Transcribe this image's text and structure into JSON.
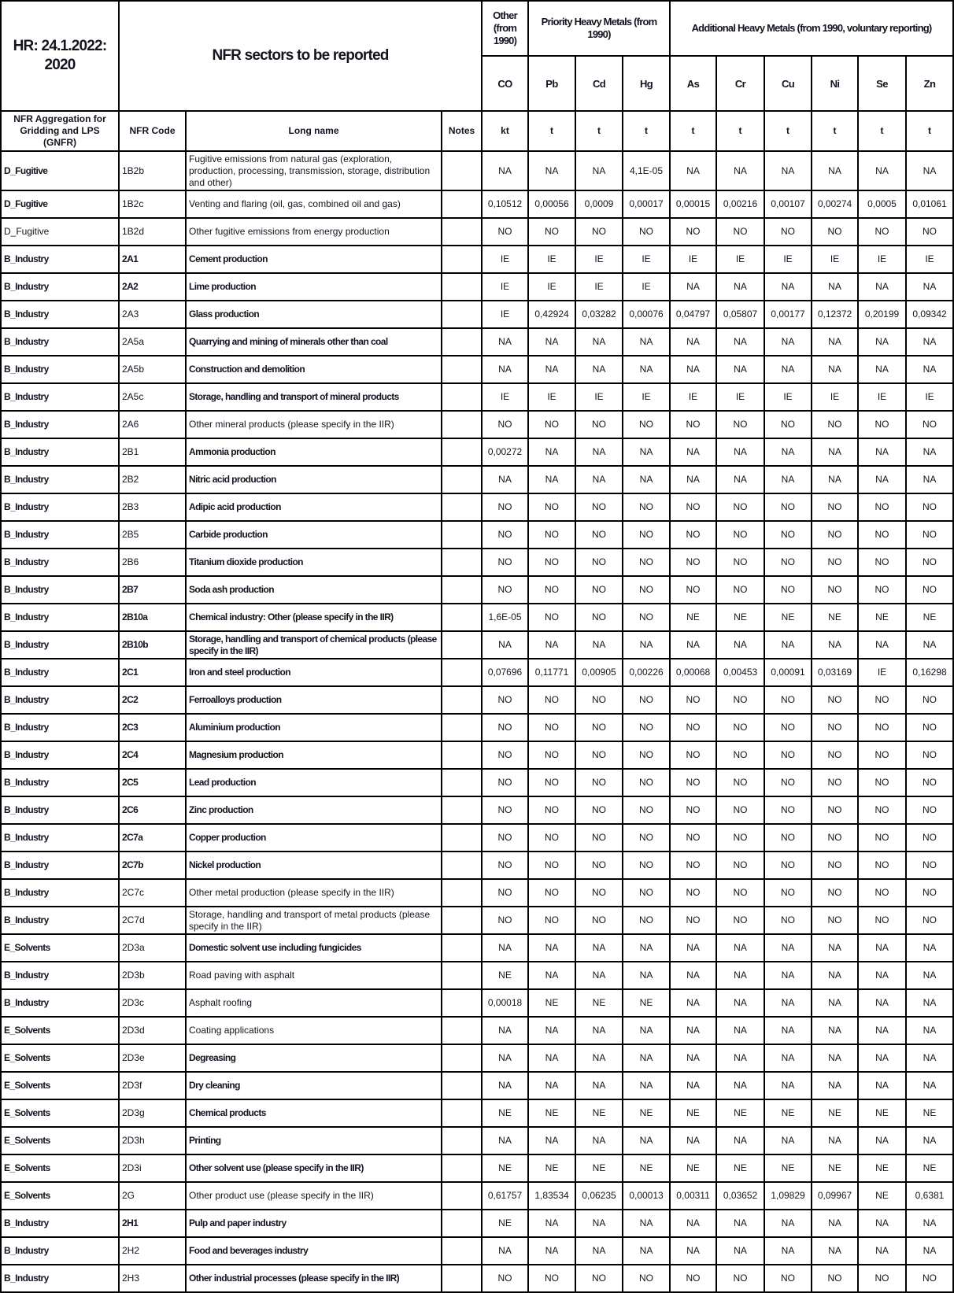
{
  "header": {
    "report_label": "HR: 24.1.2022: 2020",
    "sectors_title": "NFR sectors to be reported",
    "group_other": "Other (from 1990)",
    "group_priority": "Priority Heavy Metals (from 1990)",
    "group_additional": "Additional Heavy Metals (from 1990, voluntary reporting)",
    "pollutants": [
      "CO",
      "Pb",
      "Cd",
      "Hg",
      "As",
      "Cr",
      "Cu",
      "Ni",
      "Se",
      "Zn"
    ],
    "col_gnfr": "NFR Aggregation for Gridding and LPS (GNFR)",
    "col_code": "NFR Code",
    "col_name": "Long name",
    "col_notes": "Notes",
    "units": [
      "kt",
      "t",
      "t",
      "t",
      "t",
      "t",
      "t",
      "t",
      "t",
      "t"
    ]
  },
  "rows": [
    {
      "style": "bnn",
      "gnfr": "D_Fugitive",
      "code": "1B2b",
      "name": "Fugitive emissions from natural gas (exploration, production, processing, transmission, storage, distribution and other)",
      "values": [
        "NA",
        "NA",
        "NA",
        "4,1E-05",
        "NA",
        "NA",
        "NA",
        "NA",
        "NA",
        "NA"
      ]
    },
    {
      "style": "bnn",
      "gnfr": "D_Fugitive",
      "code": "1B2c",
      "name": "Venting and flaring (oil, gas, combined oil and gas)",
      "values": [
        "0,10512",
        "0,00056",
        "0,0009",
        "0,00017",
        "0,00015",
        "0,00216",
        "0,00107",
        "0,00274",
        "0,0005",
        "0,01061"
      ]
    },
    {
      "style": "nnn",
      "gnfr": "D_Fugitive",
      "code": "1B2d",
      "name": "Other fugitive emissions from energy production",
      "values": [
        "NO",
        "NO",
        "NO",
        "NO",
        "NO",
        "NO",
        "NO",
        "NO",
        "NO",
        "NO"
      ]
    },
    {
      "style": "bbb",
      "gnfr": "B_Industry",
      "code": "2A1",
      "name": "Cement production",
      "values": [
        "IE",
        "IE",
        "IE",
        "IE",
        "IE",
        "IE",
        "IE",
        "IE",
        "IE",
        "IE"
      ]
    },
    {
      "style": "bbb",
      "gnfr": "B_Industry",
      "code": "2A2",
      "name": "Lime production",
      "values": [
        "IE",
        "IE",
        "IE",
        "IE",
        "NA",
        "NA",
        "NA",
        "NA",
        "NA",
        "NA"
      ]
    },
    {
      "style": "bnb",
      "gnfr": "B_Industry",
      "code": "2A3",
      "name": "Glass production",
      "values": [
        "IE",
        "0,42924",
        "0,03282",
        "0,00076",
        "0,04797",
        "0,05807",
        "0,00177",
        "0,12372",
        "0,20199",
        "0,09342"
      ]
    },
    {
      "style": "bnb",
      "gnfr": "B_Industry",
      "code": "2A5a",
      "name": "Quarrying and mining of minerals other than coal",
      "values": [
        "NA",
        "NA",
        "NA",
        "NA",
        "NA",
        "NA",
        "NA",
        "NA",
        "NA",
        "NA"
      ]
    },
    {
      "style": "bnb",
      "gnfr": "B_Industry",
      "code": "2A5b",
      "name": "Construction and demolition",
      "values": [
        "NA",
        "NA",
        "NA",
        "NA",
        "NA",
        "NA",
        "NA",
        "NA",
        "NA",
        "NA"
      ]
    },
    {
      "style": "bnb",
      "gnfr": "B_Industry",
      "code": "2A5c",
      "name": "Storage, handling and transport of mineral products",
      "values": [
        "IE",
        "IE",
        "IE",
        "IE",
        "IE",
        "IE",
        "IE",
        "IE",
        "IE",
        "IE"
      ]
    },
    {
      "style": "bnn",
      "gnfr": "B_Industry",
      "code": "2A6",
      "name": "Other mineral products (please specify in the IIR)",
      "values": [
        "NO",
        "NO",
        "NO",
        "NO",
        "NO",
        "NO",
        "NO",
        "NO",
        "NO",
        "NO"
      ]
    },
    {
      "style": "bnb",
      "gnfr": "B_Industry",
      "code": "2B1",
      "name": "Ammonia production",
      "values": [
        "0,00272",
        "NA",
        "NA",
        "NA",
        "NA",
        "NA",
        "NA",
        "NA",
        "NA",
        "NA"
      ]
    },
    {
      "style": "bnb",
      "gnfr": "B_Industry",
      "code": "2B2",
      "name": "Nitric acid production",
      "values": [
        "NA",
        "NA",
        "NA",
        "NA",
        "NA",
        "NA",
        "NA",
        "NA",
        "NA",
        "NA"
      ]
    },
    {
      "style": "bnb",
      "gnfr": "B_Industry",
      "code": "2B3",
      "name": "Adipic acid production",
      "values": [
        "NO",
        "NO",
        "NO",
        "NO",
        "NO",
        "NO",
        "NO",
        "NO",
        "NO",
        "NO"
      ]
    },
    {
      "style": "bnb",
      "gnfr": "B_Industry",
      "code": "2B5",
      "name": "Carbide production",
      "values": [
        "NO",
        "NO",
        "NO",
        "NO",
        "NO",
        "NO",
        "NO",
        "NO",
        "NO",
        "NO"
      ]
    },
    {
      "style": "bnb",
      "gnfr": "B_Industry",
      "code": "2B6",
      "name": "Titanium dioxide production",
      "values": [
        "NO",
        "NO",
        "NO",
        "NO",
        "NO",
        "NO",
        "NO",
        "NO",
        "NO",
        "NO"
      ]
    },
    {
      "style": "bbb",
      "gnfr": "B_Industry",
      "code": "2B7",
      "name": "Soda ash production",
      "values": [
        "NO",
        "NO",
        "NO",
        "NO",
        "NO",
        "NO",
        "NO",
        "NO",
        "NO",
        "NO"
      ]
    },
    {
      "style": "bbb",
      "gnfr": "B_Industry",
      "code": "2B10a",
      "name": "Chemical industry: Other (please specify in the IIR)",
      "values": [
        "1,6E-05",
        "NO",
        "NO",
        "NO",
        "NE",
        "NE",
        "NE",
        "NE",
        "NE",
        "NE"
      ]
    },
    {
      "style": "bbb",
      "gnfr": "B_Industry",
      "code": "2B10b",
      "name": "Storage, handling and transport of chemical products (please specify in the IIR)",
      "values": [
        "NA",
        "NA",
        "NA",
        "NA",
        "NA",
        "NA",
        "NA",
        "NA",
        "NA",
        "NA"
      ]
    },
    {
      "style": "bbb",
      "gnfr": "B_Industry",
      "code": "2C1",
      "name": "Iron and steel production",
      "values": [
        "0,07696",
        "0,11771",
        "0,00905",
        "0,00226",
        "0,00068",
        "0,00453",
        "0,00091",
        "0,03169",
        "IE",
        "0,16298"
      ]
    },
    {
      "style": "bbb",
      "gnfr": "B_Industry",
      "code": "2C2",
      "name": "Ferroalloys production",
      "values": [
        "NO",
        "NO",
        "NO",
        "NO",
        "NO",
        "NO",
        "NO",
        "NO",
        "NO",
        "NO"
      ]
    },
    {
      "style": "bbb",
      "gnfr": "B_Industry",
      "code": "2C3",
      "name": "Aluminium production",
      "values": [
        "NO",
        "NO",
        "NO",
        "NO",
        "NO",
        "NO",
        "NO",
        "NO",
        "NO",
        "NO"
      ]
    },
    {
      "style": "bbb",
      "gnfr": "B_Industry",
      "code": "2C4",
      "name": "Magnesium production",
      "values": [
        "NO",
        "NO",
        "NO",
        "NO",
        "NO",
        "NO",
        "NO",
        "NO",
        "NO",
        "NO"
      ]
    },
    {
      "style": "bbb",
      "gnfr": "B_Industry",
      "code": "2C5",
      "name": "Lead production",
      "values": [
        "NO",
        "NO",
        "NO",
        "NO",
        "NO",
        "NO",
        "NO",
        "NO",
        "NO",
        "NO"
      ]
    },
    {
      "style": "bbb",
      "gnfr": "B_Industry",
      "code": "2C6",
      "name": "Zinc production",
      "values": [
        "NO",
        "NO",
        "NO",
        "NO",
        "NO",
        "NO",
        "NO",
        "NO",
        "NO",
        "NO"
      ]
    },
    {
      "style": "bbb",
      "gnfr": "B_Industry",
      "code": "2C7a",
      "name": "Copper production",
      "values": [
        "NO",
        "NO",
        "NO",
        "NO",
        "NO",
        "NO",
        "NO",
        "NO",
        "NO",
        "NO"
      ]
    },
    {
      "style": "bbb",
      "gnfr": "B_Industry",
      "code": "2C7b",
      "name": "Nickel production",
      "values": [
        "NO",
        "NO",
        "NO",
        "NO",
        "NO",
        "NO",
        "NO",
        "NO",
        "NO",
        "NO"
      ]
    },
    {
      "style": "bnn",
      "gnfr": "B_Industry",
      "code": "2C7c",
      "name": "Other metal production (please specify in the IIR)",
      "values": [
        "NO",
        "NO",
        "NO",
        "NO",
        "NO",
        "NO",
        "NO",
        "NO",
        "NO",
        "NO"
      ]
    },
    {
      "style": "bnn",
      "gnfr": "B_Industry",
      "code": "2C7d",
      "name": "Storage, handling and transport of metal products (please specify in the IIR)",
      "values": [
        "NO",
        "NO",
        "NO",
        "NO",
        "NO",
        "NO",
        "NO",
        "NO",
        "NO",
        "NO"
      ]
    },
    {
      "style": "bnb",
      "gnfr": "E_Solvents",
      "code": "2D3a",
      "name": "Domestic solvent use including fungicides",
      "values": [
        "NA",
        "NA",
        "NA",
        "NA",
        "NA",
        "NA",
        "NA",
        "NA",
        "NA",
        "NA"
      ]
    },
    {
      "style": "bnn",
      "gnfr": "B_Industry",
      "code": "2D3b",
      "name": "Road paving with asphalt",
      "values": [
        "NE",
        "NA",
        "NA",
        "NA",
        "NA",
        "NA",
        "NA",
        "NA",
        "NA",
        "NA"
      ]
    },
    {
      "style": "bnn",
      "gnfr": "B_Industry",
      "code": "2D3c",
      "name": "Asphalt roofing",
      "values": [
        "0,00018",
        "NE",
        "NE",
        "NE",
        "NA",
        "NA",
        "NA",
        "NA",
        "NA",
        "NA"
      ]
    },
    {
      "style": "bnn",
      "gnfr": "E_Solvents",
      "code": "2D3d",
      "name": "Coating applications",
      "values": [
        "NA",
        "NA",
        "NA",
        "NA",
        "NA",
        "NA",
        "NA",
        "NA",
        "NA",
        "NA"
      ]
    },
    {
      "style": "bnb",
      "gnfr": "E_Solvents",
      "code": "2D3e",
      "name": "Degreasing",
      "values": [
        "NA",
        "NA",
        "NA",
        "NA",
        "NA",
        "NA",
        "NA",
        "NA",
        "NA",
        "NA"
      ]
    },
    {
      "style": "bnb",
      "gnfr": "E_Solvents",
      "code": "2D3f",
      "name": "Dry cleaning",
      "values": [
        "NA",
        "NA",
        "NA",
        "NA",
        "NA",
        "NA",
        "NA",
        "NA",
        "NA",
        "NA"
      ]
    },
    {
      "style": "bnb",
      "gnfr": "E_Solvents",
      "code": "2D3g",
      "name": "Chemical products",
      "values": [
        "NE",
        "NE",
        "NE",
        "NE",
        "NE",
        "NE",
        "NE",
        "NE",
        "NE",
        "NE"
      ]
    },
    {
      "style": "bnb",
      "gnfr": "E_Solvents",
      "code": "2D3h",
      "name": "Printing",
      "values": [
        "NA",
        "NA",
        "NA",
        "NA",
        "NA",
        "NA",
        "NA",
        "NA",
        "NA",
        "NA"
      ]
    },
    {
      "style": "bnb",
      "gnfr": "E_Solvents",
      "code": "2D3i",
      "name": "Other solvent use (please specify in the IIR)",
      "values": [
        "NE",
        "NE",
        "NE",
        "NE",
        "NE",
        "NE",
        "NE",
        "NE",
        "NE",
        "NE"
      ]
    },
    {
      "style": "bnn",
      "gnfr": "E_Solvents",
      "code": "2G",
      "name": "Other product use (please specify in the IIR)",
      "values": [
        "0,61757",
        "1,83534",
        "0,06235",
        "0,00013",
        "0,00311",
        "0,03652",
        "1,09829",
        "0,09967",
        "NE",
        "0,6381"
      ]
    },
    {
      "style": "bbb",
      "gnfr": "B_Industry",
      "code": "2H1",
      "name": "Pulp and paper industry",
      "values": [
        "NE",
        "NA",
        "NA",
        "NA",
        "NA",
        "NA",
        "NA",
        "NA",
        "NA",
        "NA"
      ]
    },
    {
      "style": "bnb",
      "gnfr": "B_Industry",
      "code": "2H2",
      "name": "Food and beverages industry",
      "values": [
        "NA",
        "NA",
        "NA",
        "NA",
        "NA",
        "NA",
        "NA",
        "NA",
        "NA",
        "NA"
      ]
    },
    {
      "style": "bnb",
      "gnfr": "B_Industry",
      "code": "2H3",
      "name": "Other industrial processes (please specify in the IIR)",
      "values": [
        "NO",
        "NO",
        "NO",
        "NO",
        "NO",
        "NO",
        "NO",
        "NO",
        "NO",
        "NO"
      ]
    }
  ]
}
